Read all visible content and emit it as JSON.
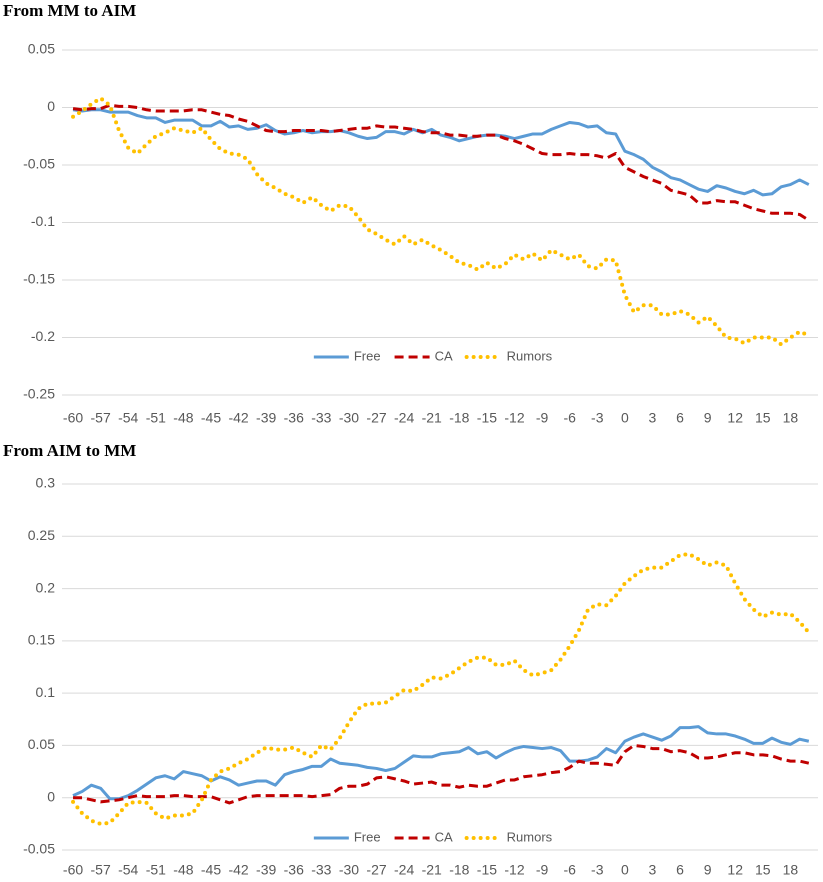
{
  "chart_data": [
    {
      "type": "line",
      "title": "From MM to AIM",
      "x": [
        -60,
        -59,
        -58,
        -57,
        -56,
        -55,
        -54,
        -53,
        -52,
        -51,
        -50,
        -49,
        -48,
        -47,
        -46,
        -45,
        -44,
        -43,
        -42,
        -41,
        -40,
        -39,
        -38,
        -37,
        -36,
        -35,
        -34,
        -33,
        -32,
        -31,
        -30,
        -29,
        -28,
        -27,
        -26,
        -25,
        -24,
        -23,
        -22,
        -21,
        -20,
        -19,
        -18,
        -17,
        -16,
        -15,
        -14,
        -13,
        -12,
        -11,
        -10,
        -9,
        -8,
        -7,
        -6,
        -5,
        -4,
        -3,
        -2,
        -1,
        0,
        1,
        2,
        3,
        4,
        5,
        6,
        7,
        8,
        9,
        10,
        11,
        12,
        13,
        14,
        15,
        16,
        17,
        18,
        19,
        20
      ],
      "xlim": [
        -61.2,
        21
      ],
      "xticks": [
        -60,
        -57,
        -54,
        -51,
        -48,
        -45,
        -42,
        -39,
        -36,
        -33,
        -30,
        -27,
        -24,
        -21,
        -18,
        -15,
        -12,
        -9,
        -6,
        -3,
        0,
        3,
        6,
        9,
        12,
        15,
        18
      ],
      "ylim": [
        -0.25,
        0.05
      ],
      "yticks": [
        0.05,
        0,
        -0.05,
        -0.1,
        -0.15,
        -0.2,
        -0.25
      ],
      "grid": true,
      "legend": "bottom",
      "series": [
        {
          "name": "Free",
          "color": "#5b9bd5",
          "style": "solid",
          "values": [
            -0.002,
            -0.003,
            -0.002,
            -0.002,
            -0.004,
            -0.004,
            -0.004,
            -0.007,
            -0.009,
            -0.009,
            -0.013,
            -0.011,
            -0.011,
            -0.011,
            -0.016,
            -0.016,
            -0.012,
            -0.017,
            -0.016,
            -0.019,
            -0.018,
            -0.015,
            -0.02,
            -0.023,
            -0.022,
            -0.02,
            -0.022,
            -0.021,
            -0.021,
            -0.02,
            -0.022,
            -0.025,
            -0.027,
            -0.026,
            -0.021,
            -0.021,
            -0.023,
            -0.019,
            -0.022,
            -0.019,
            -0.024,
            -0.026,
            -0.029,
            -0.027,
            -0.025,
            -0.024,
            -0.024,
            -0.025,
            -0.027,
            -0.025,
            -0.023,
            -0.023,
            -0.019,
            -0.016,
            -0.013,
            -0.014,
            -0.017,
            -0.016,
            -0.022,
            -0.023,
            -0.038,
            -0.041,
            -0.045,
            -0.052,
            -0.056,
            -0.061,
            -0.063,
            -0.067,
            -0.071,
            -0.073,
            -0.068,
            -0.07,
            -0.073,
            -0.075,
            -0.072,
            -0.076,
            -0.075,
            -0.069,
            -0.067,
            -0.063,
            -0.067
          ]
        },
        {
          "name": "CA",
          "color": "#c00000",
          "style": "dashed",
          "values": [
            -0.001,
            -0.002,
            -0.001,
            -0.001,
            0.002,
            0.001,
            0.001,
            0,
            -0.002,
            -0.003,
            -0.003,
            -0.003,
            -0.003,
            -0.002,
            -0.002,
            -0.004,
            -0.006,
            -0.007,
            -0.01,
            -0.012,
            -0.016,
            -0.02,
            -0.021,
            -0.021,
            -0.02,
            -0.02,
            -0.02,
            -0.02,
            -0.021,
            -0.02,
            -0.019,
            -0.018,
            -0.018,
            -0.016,
            -0.017,
            -0.017,
            -0.018,
            -0.019,
            -0.021,
            -0.022,
            -0.022,
            -0.024,
            -0.024,
            -0.025,
            -0.025,
            -0.024,
            -0.024,
            -0.027,
            -0.029,
            -0.032,
            -0.036,
            -0.04,
            -0.041,
            -0.041,
            -0.04,
            -0.041,
            -0.041,
            -0.042,
            -0.044,
            -0.04,
            -0.052,
            -0.056,
            -0.06,
            -0.063,
            -0.066,
            -0.072,
            -0.074,
            -0.076,
            -0.083,
            -0.083,
            -0.081,
            -0.082,
            -0.082,
            -0.085,
            -0.088,
            -0.09,
            -0.092,
            -0.092,
            -0.092,
            -0.093,
            -0.098
          ]
        },
        {
          "name": "Rumors",
          "color": "#ffc000",
          "style": "dotted",
          "values": [
            -0.008,
            -0.003,
            0.003,
            0.008,
            0.002,
            -0.02,
            -0.035,
            -0.04,
            -0.032,
            -0.025,
            -0.022,
            -0.018,
            -0.02,
            -0.022,
            -0.018,
            -0.028,
            -0.036,
            -0.04,
            -0.041,
            -0.045,
            -0.058,
            -0.066,
            -0.07,
            -0.075,
            -0.078,
            -0.083,
            -0.078,
            -0.085,
            -0.09,
            -0.085,
            -0.086,
            -0.095,
            -0.106,
            -0.11,
            -0.115,
            -0.119,
            -0.112,
            -0.119,
            -0.115,
            -0.12,
            -0.124,
            -0.129,
            -0.135,
            -0.137,
            -0.141,
            -0.135,
            -0.14,
            -0.136,
            -0.128,
            -0.132,
            -0.127,
            -0.133,
            -0.124,
            -0.128,
            -0.132,
            -0.128,
            -0.138,
            -0.14,
            -0.132,
            -0.133,
            -0.163,
            -0.178,
            -0.172,
            -0.172,
            -0.18,
            -0.18,
            -0.177,
            -0.18,
            -0.187,
            -0.182,
            -0.19,
            -0.2,
            -0.201,
            -0.205,
            -0.2,
            -0.2,
            -0.2,
            -0.206,
            -0.2,
            -0.195,
            -0.198
          ]
        }
      ]
    },
    {
      "type": "line",
      "title": "From AIM to MM",
      "x": [
        -60,
        -59,
        -58,
        -57,
        -56,
        -55,
        -54,
        -53,
        -52,
        -51,
        -50,
        -49,
        -48,
        -47,
        -46,
        -45,
        -44,
        -43,
        -42,
        -41,
        -40,
        -39,
        -38,
        -37,
        -36,
        -35,
        -34,
        -33,
        -32,
        -31,
        -30,
        -29,
        -28,
        -27,
        -26,
        -25,
        -24,
        -23,
        -22,
        -21,
        -20,
        -19,
        -18,
        -17,
        -16,
        -15,
        -14,
        -13,
        -12,
        -11,
        -10,
        -9,
        -8,
        -7,
        -6,
        -5,
        -4,
        -3,
        -2,
        -1,
        0,
        1,
        2,
        3,
        4,
        5,
        6,
        7,
        8,
        9,
        10,
        11,
        12,
        13,
        14,
        15,
        16,
        17,
        18,
        19,
        20
      ],
      "xlim": [
        -61.2,
        21
      ],
      "xticks": [
        -60,
        -57,
        -54,
        -51,
        -48,
        -45,
        -42,
        -39,
        -36,
        -33,
        -30,
        -27,
        -24,
        -21,
        -18,
        -15,
        -12,
        -9,
        -6,
        -3,
        0,
        3,
        6,
        9,
        12,
        15,
        18
      ],
      "ylim": [
        -0.05,
        0.3
      ],
      "yticks": [
        0.3,
        0.25,
        0.2,
        0.15,
        0.1,
        0.05,
        0,
        -0.05
      ],
      "grid": true,
      "legend": "bottom",
      "series": [
        {
          "name": "Free",
          "color": "#5b9bd5",
          "style": "solid",
          "values": [
            0.002,
            0.006,
            0.012,
            0.009,
            -0.001,
            -0.001,
            0.002,
            0.007,
            0.013,
            0.019,
            0.021,
            0.018,
            0.025,
            0.023,
            0.021,
            0.016,
            0.02,
            0.017,
            0.012,
            0.014,
            0.016,
            0.016,
            0.012,
            0.022,
            0.025,
            0.027,
            0.03,
            0.03,
            0.037,
            0.033,
            0.032,
            0.031,
            0.029,
            0.028,
            0.026,
            0.028,
            0.034,
            0.04,
            0.039,
            0.039,
            0.042,
            0.043,
            0.044,
            0.048,
            0.042,
            0.044,
            0.038,
            0.043,
            0.047,
            0.049,
            0.048,
            0.047,
            0.048,
            0.045,
            0.035,
            0.035,
            0.036,
            0.039,
            0.047,
            0.043,
            0.054,
            0.058,
            0.061,
            0.058,
            0.055,
            0.059,
            0.067,
            0.067,
            0.068,
            0.062,
            0.061,
            0.061,
            0.059,
            0.056,
            0.052,
            0.052,
            0.057,
            0.053,
            0.051,
            0.056,
            0.054
          ]
        },
        {
          "name": "CA",
          "color": "#c00000",
          "style": "dashed",
          "values": [
            0,
            0,
            -0.002,
            -0.004,
            -0.003,
            -0.002,
            0,
            0.002,
            0.001,
            0.001,
            0.001,
            0.002,
            0.002,
            0.001,
            0.001,
            0.001,
            -0.002,
            -0.005,
            -0.002,
            0.001,
            0.002,
            0.002,
            0.002,
            0.002,
            0.002,
            0.002,
            0.001,
            0.002,
            0.003,
            0.009,
            0.011,
            0.011,
            0.013,
            0.019,
            0.02,
            0.018,
            0.016,
            0.013,
            0.014,
            0.015,
            0.012,
            0.012,
            0.01,
            0.012,
            0.011,
            0.011,
            0.014,
            0.017,
            0.017,
            0.02,
            0.021,
            0.022,
            0.024,
            0.025,
            0.029,
            0.035,
            0.033,
            0.033,
            0.032,
            0.031,
            0.044,
            0.05,
            0.049,
            0.047,
            0.047,
            0.044,
            0.045,
            0.043,
            0.038,
            0.038,
            0.039,
            0.041,
            0.043,
            0.043,
            0.041,
            0.041,
            0.04,
            0.037,
            0.035,
            0.035,
            0.033
          ]
        },
        {
          "name": "Rumors",
          "color": "#ffc000",
          "style": "dotted",
          "values": [
            -0.004,
            -0.015,
            -0.022,
            -0.025,
            -0.024,
            -0.015,
            -0.005,
            -0.004,
            -0.005,
            -0.015,
            -0.02,
            -0.017,
            -0.017,
            -0.015,
            -0.002,
            0.017,
            0.025,
            0.028,
            0.033,
            0.037,
            0.043,
            0.048,
            0.046,
            0.046,
            0.048,
            0.043,
            0.039,
            0.05,
            0.046,
            0.057,
            0.072,
            0.085,
            0.09,
            0.09,
            0.091,
            0.097,
            0.103,
            0.102,
            0.108,
            0.115,
            0.114,
            0.118,
            0.124,
            0.13,
            0.134,
            0.134,
            0.127,
            0.127,
            0.131,
            0.122,
            0.117,
            0.119,
            0.122,
            0.132,
            0.145,
            0.16,
            0.18,
            0.185,
            0.184,
            0.193,
            0.205,
            0.212,
            0.218,
            0.22,
            0.22,
            0.226,
            0.232,
            0.233,
            0.228,
            0.222,
            0.225,
            0.222,
            0.205,
            0.19,
            0.18,
            0.173,
            0.177,
            0.175,
            0.176,
            0.168,
            0.158
          ]
        }
      ]
    }
  ]
}
